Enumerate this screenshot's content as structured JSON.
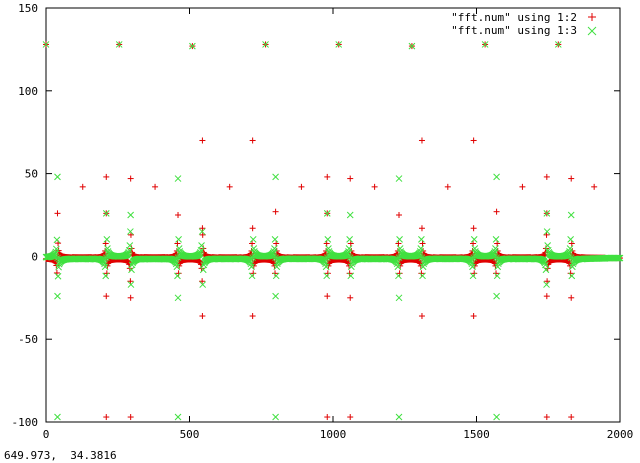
{
  "window": {
    "coordinate_readout": "649.973,  34.3816"
  },
  "chart_data": {
    "type": "scatter",
    "title": "",
    "xlabel": "",
    "ylabel": "",
    "xlim": [
      0,
      2000
    ],
    "ylim": [
      -100,
      150
    ],
    "x_ticks": [
      0,
      500,
      1000,
      1500,
      2000
    ],
    "y_ticks": [
      -100,
      -50,
      0,
      50,
      100,
      150
    ],
    "grid": false,
    "legend_position": "top-right",
    "legend": [
      {
        "label": "\"fft.num\" using 1:2",
        "color": "#e00000",
        "marker": "plus"
      },
      {
        "label": "\"fft.num\" using 1:3",
        "color": "#40e040",
        "marker": "cross"
      }
    ],
    "colors": {
      "series1": "#e00000",
      "series2": "#40e040"
    },
    "description_of_pattern": "periodic spikes near x≈40, 210, 295, 460, 545, 720, 800, 980, 1060, 1230, 1310, 1490, 1570, 1745, 1830 with near-zero band elsewhere",
    "spike_centers": [
      40,
      210,
      295,
      460,
      545,
      720,
      800,
      980,
      1060,
      1230,
      1310,
      1490,
      1570,
      1745,
      1830
    ],
    "series": [
      {
        "name": "\"fft.num\" using 1:2",
        "outliers": [
          {
            "x": 128,
            "y": 42
          },
          {
            "x": 255,
            "y": 128
          },
          {
            "x": 380,
            "y": 42
          },
          {
            "x": 510,
            "y": 127
          },
          {
            "x": 640,
            "y": 42
          },
          {
            "x": 765,
            "y": 128
          },
          {
            "x": 890,
            "y": 42
          },
          {
            "x": 1020,
            "y": 128
          },
          {
            "x": 1145,
            "y": 42
          },
          {
            "x": 1275,
            "y": 127
          },
          {
            "x": 1400,
            "y": 42
          },
          {
            "x": 1530,
            "y": 128
          },
          {
            "x": 1660,
            "y": 42
          },
          {
            "x": 1785,
            "y": 128
          },
          {
            "x": 1910,
            "y": 42
          },
          {
            "x": 0,
            "y": 128
          },
          {
            "x": 545,
            "y": 70
          },
          {
            "x": 720,
            "y": 70
          },
          {
            "x": 1310,
            "y": 70
          },
          {
            "x": 1490,
            "y": 70
          },
          {
            "x": 545,
            "y": 17
          },
          {
            "x": 720,
            "y": 17
          },
          {
            "x": 1310,
            "y": 17
          },
          {
            "x": 1490,
            "y": 17
          },
          {
            "x": 545,
            "y": -36
          },
          {
            "x": 720,
            "y": -36
          },
          {
            "x": 1310,
            "y": -36
          },
          {
            "x": 1490,
            "y": -36
          },
          {
            "x": 210,
            "y": 48
          },
          {
            "x": 295,
            "y": 47
          },
          {
            "x": 980,
            "y": 48
          },
          {
            "x": 1060,
            "y": 47
          },
          {
            "x": 1745,
            "y": 48
          },
          {
            "x": 1830,
            "y": 47
          },
          {
            "x": 210,
            "y": -97
          },
          {
            "x": 295,
            "y": -97
          },
          {
            "x": 980,
            "y": -97
          },
          {
            "x": 1060,
            "y": -97
          },
          {
            "x": 1745,
            "y": -97
          },
          {
            "x": 1830,
            "y": -97
          },
          {
            "x": 210,
            "y": -24
          },
          {
            "x": 295,
            "y": -25
          },
          {
            "x": 980,
            "y": -24
          },
          {
            "x": 1060,
            "y": -25
          },
          {
            "x": 1745,
            "y": -24
          },
          {
            "x": 1830,
            "y": -25
          },
          {
            "x": 40,
            "y": 26
          },
          {
            "x": 210,
            "y": 26
          },
          {
            "x": 460,
            "y": 25
          },
          {
            "x": 800,
            "y": 27
          },
          {
            "x": 980,
            "y": 26
          },
          {
            "x": 1230,
            "y": 25
          },
          {
            "x": 1570,
            "y": 27
          },
          {
            "x": 1745,
            "y": 26
          }
        ]
      },
      {
        "name": "\"fft.num\" using 1:3",
        "outliers": [
          {
            "x": 0,
            "y": 128
          },
          {
            "x": 255,
            "y": 128
          },
          {
            "x": 510,
            "y": 127
          },
          {
            "x": 765,
            "y": 128
          },
          {
            "x": 1020,
            "y": 128
          },
          {
            "x": 1275,
            "y": 127
          },
          {
            "x": 1530,
            "y": 128
          },
          {
            "x": 1785,
            "y": 128
          },
          {
            "x": 40,
            "y": 48
          },
          {
            "x": 460,
            "y": 47
          },
          {
            "x": 800,
            "y": 48
          },
          {
            "x": 1230,
            "y": 47
          },
          {
            "x": 1570,
            "y": 48
          },
          {
            "x": 40,
            "y": -97
          },
          {
            "x": 460,
            "y": -97
          },
          {
            "x": 800,
            "y": -97
          },
          {
            "x": 1230,
            "y": -97
          },
          {
            "x": 1570,
            "y": -97
          },
          {
            "x": 40,
            "y": -24
          },
          {
            "x": 460,
            "y": -25
          },
          {
            "x": 800,
            "y": -24
          },
          {
            "x": 1230,
            "y": -25
          },
          {
            "x": 1570,
            "y": -24
          },
          {
            "x": 295,
            "y": 25
          },
          {
            "x": 1060,
            "y": 25
          },
          {
            "x": 1830,
            "y": 25
          },
          {
            "x": 980,
            "y": 26
          },
          {
            "x": 210,
            "y": 26
          },
          {
            "x": 1745,
            "y": 26
          }
        ]
      }
    ]
  }
}
